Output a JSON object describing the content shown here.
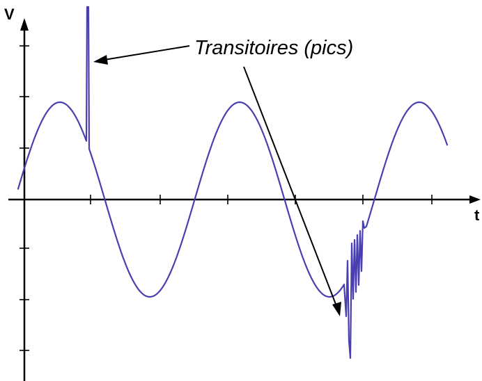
{
  "labels": {
    "y_axis": "V",
    "x_axis": "t",
    "annotation": "Transitoires (pics)"
  },
  "colors": {
    "waveform": "#4a3fb0",
    "axes": "#000000"
  }
}
